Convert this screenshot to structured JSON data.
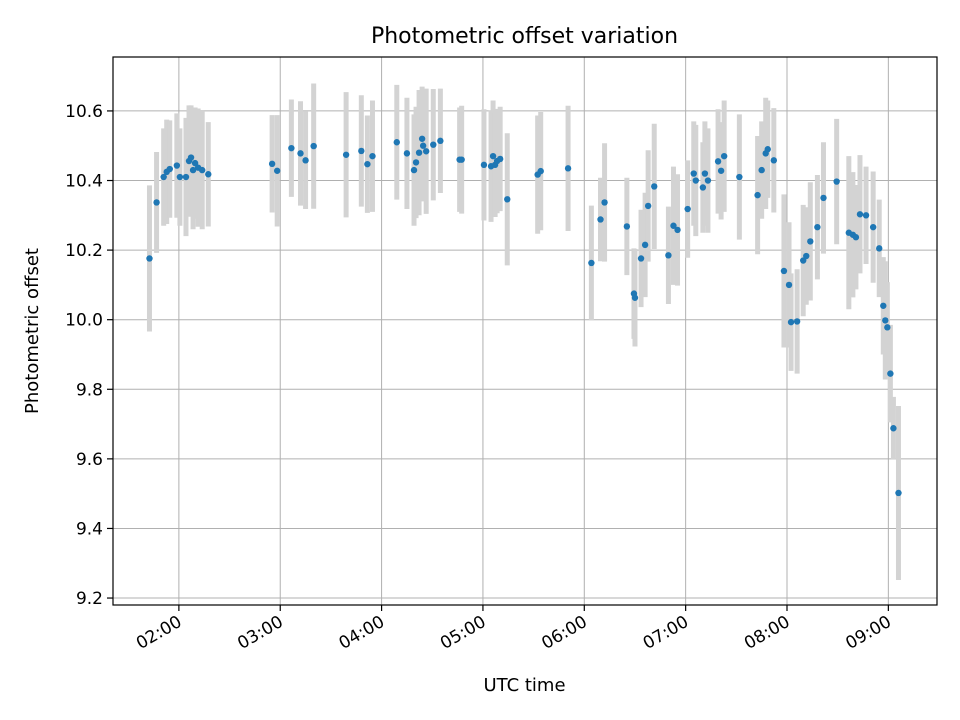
{
  "chart_data": {
    "type": "scatter",
    "title": "Photometric offset variation",
    "xlabel": "UTC time",
    "ylabel": "Photometric offset",
    "x_unit": "hours UTC",
    "xlim": [
      1.35,
      9.48
    ],
    "ylim": [
      9.18,
      10.755
    ],
    "x_ticks": [
      {
        "value": 2,
        "label": "02:00"
      },
      {
        "value": 3,
        "label": "03:00"
      },
      {
        "value": 4,
        "label": "04:00"
      },
      {
        "value": 5,
        "label": "05:00"
      },
      {
        "value": 6,
        "label": "06:00"
      },
      {
        "value": 7,
        "label": "07:00"
      },
      {
        "value": 8,
        "label": "08:00"
      },
      {
        "value": 9,
        "label": "09:00"
      }
    ],
    "y_ticks": [
      {
        "value": 9.2,
        "label": "9.2"
      },
      {
        "value": 9.4,
        "label": "9.4"
      },
      {
        "value": 9.6,
        "label": "9.6"
      },
      {
        "value": 9.8,
        "label": "9.8"
      },
      {
        "value": 10.0,
        "label": "10.0"
      },
      {
        "value": 10.2,
        "label": "10.2"
      },
      {
        "value": 10.4,
        "label": "10.4"
      },
      {
        "value": 10.6,
        "label": "10.6"
      }
    ],
    "grid": true,
    "colors": {
      "point": "#1f77b4",
      "errorbar": "#d3d3d3",
      "grid": "#b0b0b0"
    },
    "points": [
      [
        1.71,
        10.176,
        0.21
      ],
      [
        1.78,
        10.337,
        0.145
      ],
      [
        1.85,
        10.41,
        0.14
      ],
      [
        1.88,
        10.425,
        0.15
      ],
      [
        1.91,
        10.433,
        0.14
      ],
      [
        1.98,
        10.443,
        0.15
      ],
      [
        2.01,
        10.41,
        0.14
      ],
      [
        2.07,
        10.41,
        0.17
      ],
      [
        2.1,
        10.456,
        0.16
      ],
      [
        2.12,
        10.466,
        0.15
      ],
      [
        2.14,
        10.43,
        0.17
      ],
      [
        2.16,
        10.45,
        0.16
      ],
      [
        2.19,
        10.437,
        0.17
      ],
      [
        2.23,
        10.43,
        0.17
      ],
      [
        2.29,
        10.418,
        0.15
      ],
      [
        2.92,
        10.448,
        0.14
      ],
      [
        2.97,
        10.428,
        0.16
      ],
      [
        3.11,
        10.493,
        0.14
      ],
      [
        3.2,
        10.478,
        0.15
      ],
      [
        3.25,
        10.458,
        0.14
      ],
      [
        3.33,
        10.499,
        0.18
      ],
      [
        3.65,
        10.474,
        0.18
      ],
      [
        3.8,
        10.485,
        0.16
      ],
      [
        3.86,
        10.447,
        0.14
      ],
      [
        3.91,
        10.47,
        0.16
      ],
      [
        4.15,
        10.51,
        0.165
      ],
      [
        4.25,
        10.478,
        0.16
      ],
      [
        4.32,
        10.43,
        0.16
      ],
      [
        4.34,
        10.452,
        0.16
      ],
      [
        4.37,
        10.48,
        0.18
      ],
      [
        4.4,
        10.52,
        0.15
      ],
      [
        4.41,
        10.5,
        0.16
      ],
      [
        4.44,
        10.484,
        0.18
      ],
      [
        4.51,
        10.503,
        0.16
      ],
      [
        4.58,
        10.514,
        0.15
      ],
      [
        4.77,
        10.46,
        0.15
      ],
      [
        4.79,
        10.46,
        0.155
      ],
      [
        5.01,
        10.445,
        0.16
      ],
      [
        5.08,
        10.441,
        0.16
      ],
      [
        5.1,
        10.47,
        0.16
      ],
      [
        5.12,
        10.445,
        0.15
      ],
      [
        5.14,
        10.456,
        0.15
      ],
      [
        5.17,
        10.462,
        0.15
      ],
      [
        5.24,
        10.346,
        0.19
      ],
      [
        5.54,
        10.417,
        0.17
      ],
      [
        5.57,
        10.427,
        0.17
      ],
      [
        5.84,
        10.435,
        0.18
      ],
      [
        6.07,
        10.163,
        0.165
      ],
      [
        6.16,
        10.288,
        0.12
      ],
      [
        6.2,
        10.337,
        0.17
      ],
      [
        6.42,
        10.268,
        0.14
      ],
      [
        6.49,
        10.075,
        0.13
      ],
      [
        6.5,
        10.063,
        0.14
      ],
      [
        6.56,
        10.176,
        0.14
      ],
      [
        6.6,
        10.215,
        0.15
      ],
      [
        6.63,
        10.327,
        0.16
      ],
      [
        6.69,
        10.383,
        0.18
      ],
      [
        6.83,
        10.185,
        0.14
      ],
      [
        6.88,
        10.27,
        0.17
      ],
      [
        6.92,
        10.258,
        0.16
      ],
      [
        7.02,
        10.318,
        0.14
      ],
      [
        7.08,
        10.42,
        0.15
      ],
      [
        7.1,
        10.4,
        0.16
      ],
      [
        7.17,
        10.38,
        0.13
      ],
      [
        7.19,
        10.42,
        0.15
      ],
      [
        7.22,
        10.4,
        0.15
      ],
      [
        7.32,
        10.455,
        0.15
      ],
      [
        7.35,
        10.428,
        0.14
      ],
      [
        7.38,
        10.47,
        0.16
      ],
      [
        7.53,
        10.41,
        0.18
      ],
      [
        7.71,
        10.358,
        0.17
      ],
      [
        7.75,
        10.43,
        0.14
      ],
      [
        7.79,
        10.478,
        0.16
      ],
      [
        7.81,
        10.49,
        0.14
      ],
      [
        7.87,
        10.458,
        0.15
      ],
      [
        7.97,
        10.14,
        0.22
      ],
      [
        8.02,
        10.1,
        0.18
      ],
      [
        8.04,
        9.993,
        0.14
      ],
      [
        8.1,
        9.995,
        0.15
      ],
      [
        8.16,
        10.17,
        0.16
      ],
      [
        8.19,
        10.183,
        0.14
      ],
      [
        8.23,
        10.225,
        0.17
      ],
      [
        8.3,
        10.266,
        0.15
      ],
      [
        8.36,
        10.35,
        0.16
      ],
      [
        8.49,
        10.397,
        0.18
      ],
      [
        8.61,
        10.25,
        0.22
      ],
      [
        8.65,
        10.244,
        0.18
      ],
      [
        8.68,
        10.237,
        0.15
      ],
      [
        8.72,
        10.303,
        0.17
      ],
      [
        8.78,
        10.3,
        0.14
      ],
      [
        8.85,
        10.266,
        0.16
      ],
      [
        8.91,
        10.205,
        0.14
      ],
      [
        8.95,
        10.04,
        0.14
      ],
      [
        8.97,
        9.998,
        0.17
      ],
      [
        8.99,
        9.978,
        0.13
      ],
      [
        9.02,
        9.845,
        0.14
      ],
      [
        9.05,
        9.688,
        0.09
      ],
      [
        9.1,
        9.502,
        0.25
      ]
    ]
  }
}
